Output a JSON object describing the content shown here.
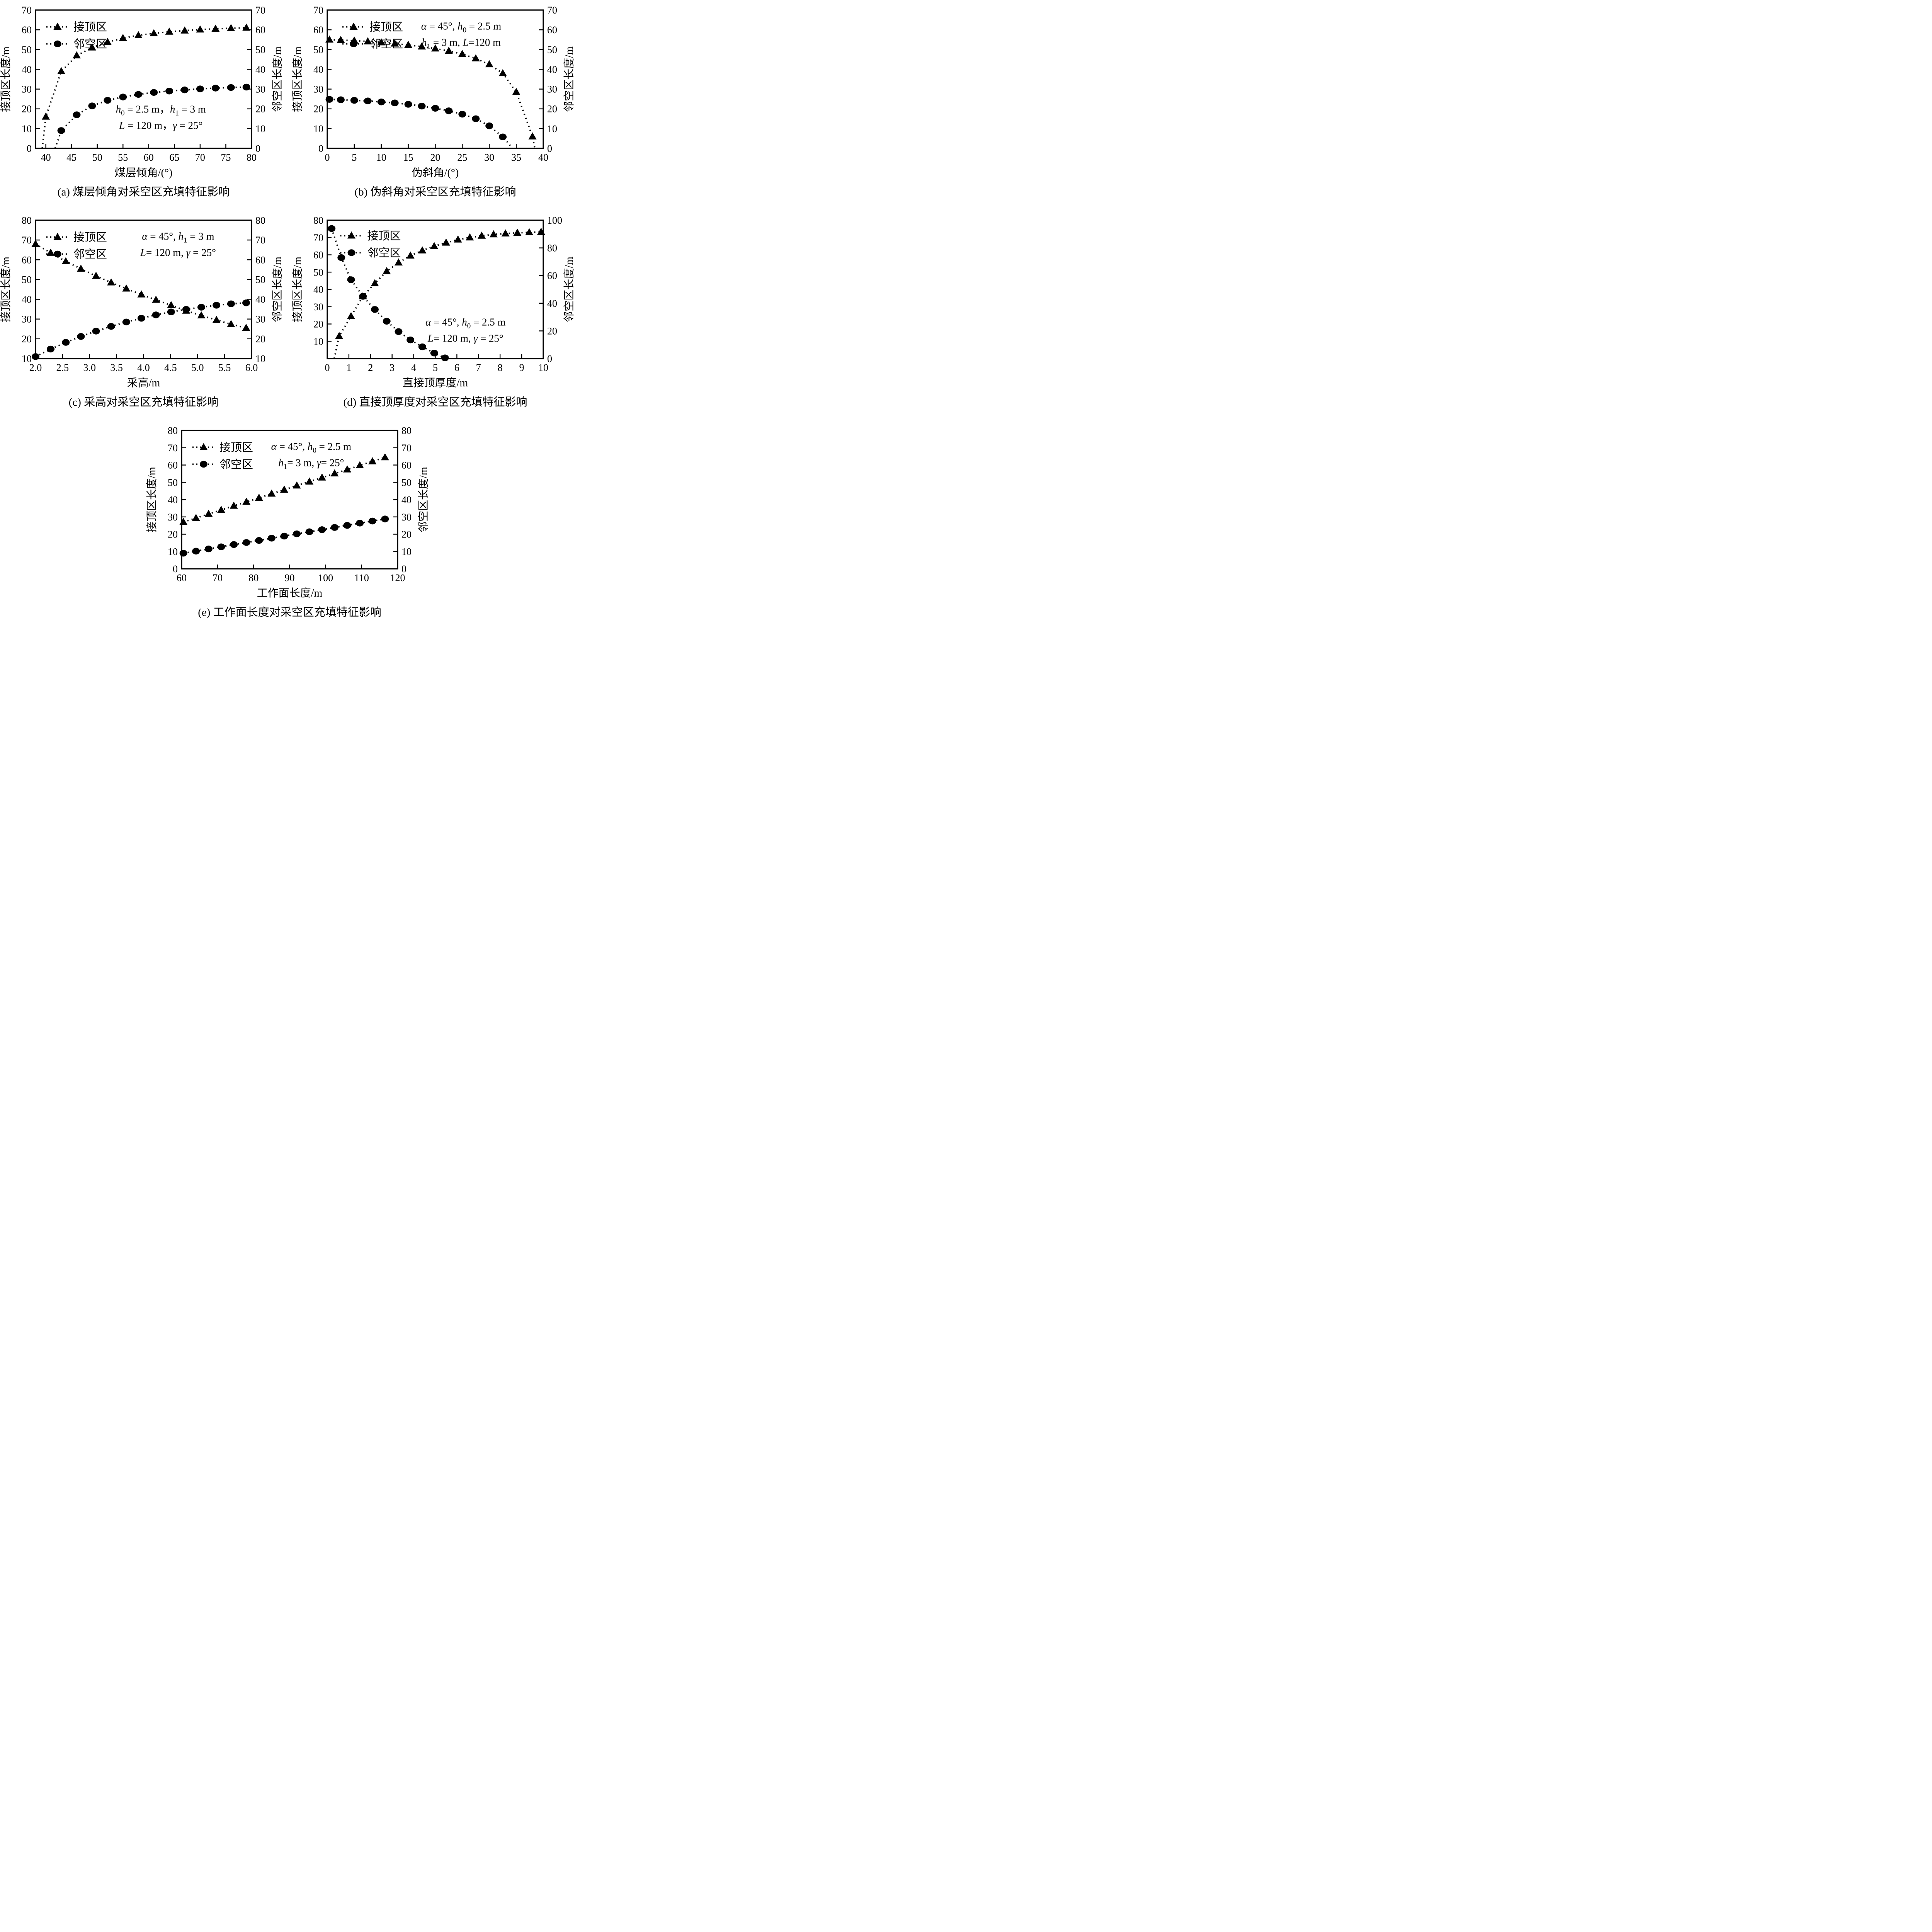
{
  "page": {
    "background": "#ffffff",
    "ink_color": "#000000"
  },
  "legend_labels": {
    "triangle": "接顶区",
    "circle": "邻空区"
  },
  "chart_data": [
    {
      "id": "a",
      "type": "line",
      "caption_label": "(a)",
      "caption_text": "煤层倾角对采空区充填特征影响",
      "x_axis": {
        "label": "煤层倾角/(°)",
        "min": 38,
        "max": 80,
        "ticks": [
          40,
          45,
          50,
          55,
          60,
          65,
          70,
          75,
          80
        ],
        "tick_labels": [
          "40",
          "45",
          "50",
          "55",
          "60",
          "65",
          "70",
          "75",
          "80"
        ]
      },
      "left_axis": {
        "label": "接顶区长度/m",
        "min": 0,
        "max": 70,
        "ticks": [
          0,
          10,
          20,
          30,
          40,
          50,
          60,
          70
        ],
        "tick_labels": [
          "0",
          "10",
          "20",
          "30",
          "40",
          "50",
          "60",
          "70"
        ]
      },
      "right_axis": {
        "label": "邻空区长度/m",
        "min": 0,
        "max": 70,
        "ticks": [
          0,
          10,
          20,
          30,
          40,
          50,
          60,
          70
        ],
        "tick_labels": [
          "0",
          "10",
          "20",
          "30",
          "40",
          "50",
          "60",
          "70"
        ]
      },
      "legend": {
        "x": 0.05,
        "y": 0.06,
        "items": [
          {
            "label": "接顶区",
            "marker": "triangle"
          },
          {
            "label": "邻空区",
            "marker": "circle"
          }
        ]
      },
      "annotation": {
        "x": 0.58,
        "y": 0.68,
        "lines": [
          "h0 = 2.5 m，h1 = 3 m",
          "L = 120 m，γ = 25°"
        ]
      },
      "series": [
        {
          "name": "接顶区",
          "marker": "triangle",
          "axis": "left",
          "line_start": [
            39.3,
            0
          ],
          "x": [
            40,
            43,
            46,
            49,
            52,
            55,
            58,
            61,
            64,
            67,
            70,
            73,
            76,
            79
          ],
          "y": [
            16,
            39,
            47,
            51,
            53.8,
            55.8,
            57.2,
            58.2,
            59,
            59.6,
            60.1,
            60.5,
            60.8,
            61
          ]
        },
        {
          "name": "邻空区",
          "marker": "circle",
          "axis": "right",
          "line_start": [
            41.8,
            0
          ],
          "x": [
            43,
            46,
            49,
            52,
            55,
            58,
            61,
            64,
            67,
            70,
            73,
            76,
            79
          ],
          "y": [
            9,
            17,
            21.5,
            24.3,
            26,
            27.3,
            28.3,
            29,
            29.6,
            30.1,
            30.5,
            30.8,
            31
          ]
        }
      ]
    },
    {
      "id": "b",
      "type": "line",
      "caption_label": "(b)",
      "caption_text": "伪斜角对采空区充填特征影响",
      "x_axis": {
        "label": "伪斜角/(°)",
        "min": 0,
        "max": 40,
        "ticks": [
          0,
          5,
          10,
          15,
          20,
          25,
          30,
          35,
          40
        ],
        "tick_labels": [
          "0",
          "5",
          "10",
          "15",
          "20",
          "25",
          "30",
          "35",
          "40"
        ]
      },
      "left_axis": {
        "label": "接顶区长度/m",
        "min": 0,
        "max": 70,
        "ticks": [
          0,
          10,
          20,
          30,
          40,
          50,
          60,
          70
        ],
        "tick_labels": [
          "0",
          "10",
          "20",
          "30",
          "40",
          "50",
          "60",
          "70"
        ]
      },
      "right_axis": {
        "label": "邻空区长度/m",
        "min": 0,
        "max": 70,
        "ticks": [
          0,
          10,
          20,
          30,
          40,
          50,
          60,
          70
        ],
        "tick_labels": [
          "0",
          "10",
          "20",
          "30",
          "40",
          "50",
          "60",
          "70"
        ]
      },
      "legend": {
        "x": 0.07,
        "y": 0.06,
        "items": [
          {
            "label": "接顶区",
            "marker": "triangle"
          },
          {
            "label": "邻空区",
            "marker": "circle"
          }
        ]
      },
      "annotation": {
        "x": 0.62,
        "y": 0.08,
        "lines": [
          "α = 45°, h0 = 2.5 m",
          "h1 = 3 m, L=120 m"
        ]
      },
      "series": [
        {
          "name": "接顶区",
          "marker": "triangle",
          "axis": "left",
          "line_end": [
            38.45,
            0
          ],
          "x": [
            0.4,
            2.5,
            5,
            7.5,
            10,
            12.5,
            15,
            17.5,
            20,
            22.5,
            25,
            27.5,
            30,
            32.5,
            35,
            38
          ],
          "y": [
            55,
            54.8,
            54.5,
            54.1,
            53.6,
            53,
            52.3,
            51.5,
            50.5,
            49.3,
            47.7,
            45.5,
            42.5,
            38,
            28.5,
            6
          ]
        },
        {
          "name": "邻空区",
          "marker": "circle",
          "axis": "right",
          "line_end": [
            34.35,
            0
          ],
          "x": [
            0.4,
            2.5,
            5,
            7.5,
            10,
            12.5,
            15,
            17.5,
            20,
            22.5,
            25,
            27.5,
            30,
            32.5
          ],
          "y": [
            24.8,
            24.6,
            24.3,
            24,
            23.5,
            23,
            22.3,
            21.4,
            20.3,
            19,
            17.3,
            15,
            11.4,
            5.8
          ]
        }
      ]
    },
    {
      "id": "c",
      "type": "line",
      "caption_label": "(c)",
      "caption_text": "采高对采空区充填特征影响",
      "x_axis": {
        "label": "采高/m",
        "min": 2.0,
        "max": 6.0,
        "ticks": [
          2.0,
          2.5,
          3.0,
          3.5,
          4.0,
          4.5,
          5.0,
          5.5,
          6.0
        ],
        "tick_labels": [
          "2.0",
          "2.5",
          "3.0",
          "3.5",
          "4.0",
          "4.5",
          "5.0",
          "5.5",
          "6.0"
        ]
      },
      "left_axis": {
        "label": "接顶区长度/m",
        "min": 10,
        "max": 80,
        "ticks": [
          10,
          20,
          30,
          40,
          50,
          60,
          70,
          80
        ],
        "tick_labels": [
          "10",
          "20",
          "30",
          "40",
          "50",
          "60",
          "70",
          "80"
        ]
      },
      "right_axis": {
        "label": "邻空区长度/m",
        "min": 10,
        "max": 80,
        "ticks": [
          10,
          20,
          30,
          40,
          50,
          60,
          70,
          80
        ],
        "tick_labels": [
          "10",
          "20",
          "30",
          "40",
          "50",
          "60",
          "70",
          "80"
        ]
      },
      "legend": {
        "x": 0.05,
        "y": 0.06,
        "items": [
          {
            "label": "接顶区",
            "marker": "triangle"
          },
          {
            "label": "邻空区",
            "marker": "circle"
          }
        ]
      },
      "annotation": {
        "x": 0.66,
        "y": 0.08,
        "lines": [
          "α = 45°, h1 = 3 m",
          "L= 120 m, γ = 25°"
        ]
      },
      "series": [
        {
          "name": "接顶区",
          "marker": "triangle",
          "axis": "left",
          "x": [
            2.0,
            2.28,
            2.56,
            2.84,
            3.12,
            3.4,
            3.68,
            3.96,
            4.23,
            4.51,
            4.79,
            5.07,
            5.35,
            5.62,
            5.9
          ],
          "y": [
            68,
            63.5,
            59.2,
            55.4,
            51.8,
            48.5,
            45.4,
            42.4,
            39.7,
            37,
            34.2,
            31.8,
            29.5,
            27.4,
            25.5
          ]
        },
        {
          "name": "邻空区",
          "marker": "circle",
          "axis": "right",
          "x": [
            2.0,
            2.28,
            2.56,
            2.84,
            3.12,
            3.4,
            3.68,
            3.96,
            4.23,
            4.51,
            4.79,
            5.07,
            5.35,
            5.62,
            5.9
          ],
          "y": [
            11,
            14.8,
            18.2,
            21.2,
            23.9,
            26.3,
            28.5,
            30.4,
            32.1,
            33.6,
            34.9,
            36,
            37,
            37.7,
            38.2
          ]
        }
      ]
    },
    {
      "id": "d",
      "type": "line",
      "caption_label": "(d)",
      "caption_text": "直接顶厚度对采空区充填特征影响",
      "x_axis": {
        "label": "直接顶厚度/m",
        "min": 0,
        "max": 10,
        "ticks": [
          0,
          1,
          2,
          3,
          4,
          5,
          6,
          7,
          8,
          9,
          10
        ],
        "tick_labels": [
          "0",
          "1",
          "2",
          "3",
          "4",
          "5",
          "6",
          "7",
          "8",
          "9",
          "10"
        ]
      },
      "left_axis": {
        "label": "接顶区长度/m",
        "min": 0,
        "max": 80,
        "ticks": [
          10,
          20,
          30,
          40,
          50,
          60,
          70,
          80
        ],
        "tick_labels": [
          "10",
          "20",
          "30",
          "40",
          "50",
          "60",
          "70",
          "80"
        ]
      },
      "right_axis": {
        "label": "邻空区长度/m",
        "min": 0,
        "max": 100,
        "ticks": [
          0,
          20,
          40,
          60,
          80,
          100
        ],
        "tick_labels": [
          "0",
          "20",
          "40",
          "60",
          "80",
          "100"
        ]
      },
      "legend": {
        "x": 0.06,
        "y": 0.05,
        "items": [
          {
            "label": "接顶区",
            "marker": "triangle"
          },
          {
            "label": "邻空区",
            "marker": "circle"
          }
        ]
      },
      "annotation": {
        "x": 0.64,
        "y": 0.7,
        "lines": [
          "α = 45°,  h0 = 2.5 m",
          "L= 120 m, γ = 25°"
        ]
      },
      "series": [
        {
          "name": "接顶区",
          "marker": "triangle",
          "axis": "left",
          "line_start": [
            0.32,
            0
          ],
          "x": [
            0.55,
            1.1,
            1.65,
            2.2,
            2.75,
            3.3,
            3.85,
            4.4,
            4.95,
            5.5,
            6.05,
            6.6,
            7.15,
            7.7,
            8.25,
            8.8,
            9.35,
            9.9
          ],
          "y": [
            13,
            24.5,
            36,
            43.5,
            50.5,
            55.5,
            59.5,
            62.5,
            65,
            67,
            68.8,
            70,
            71,
            71.8,
            72.3,
            72.7,
            73,
            73.2
          ]
        },
        {
          "name": "邻空区",
          "marker": "circle",
          "axis": "right",
          "line_end": [
            5.62,
            0
          ],
          "x": [
            0.2,
            0.65,
            1.1,
            1.65,
            2.2,
            2.75,
            3.3,
            3.85,
            4.4,
            4.95,
            5.45
          ],
          "y": [
            94,
            73,
            57,
            45,
            35.5,
            27,
            19.5,
            13.5,
            8.5,
            4,
            0.5
          ]
        }
      ]
    },
    {
      "id": "e",
      "type": "line",
      "caption_label": "(e)",
      "caption_text": "工作面长度对采空区充填特征影响",
      "x_axis": {
        "label": "工作面长度/m",
        "min": 60,
        "max": 120,
        "ticks": [
          60,
          70,
          80,
          90,
          100,
          110,
          120
        ],
        "tick_labels": [
          "60",
          "70",
          "80",
          "90",
          "100",
          "110",
          "120"
        ]
      },
      "left_axis": {
        "label": "接顶区长度/m",
        "min": 0,
        "max": 80,
        "ticks": [
          0,
          10,
          20,
          30,
          40,
          50,
          60,
          70,
          80
        ],
        "tick_labels": [
          "0",
          "10",
          "20",
          "30",
          "40",
          "50",
          "60",
          "70",
          "80"
        ]
      },
      "right_axis": {
        "label": "邻空区长度/m",
        "min": 0,
        "max": 80,
        "ticks": [
          0,
          10,
          20,
          30,
          40,
          50,
          60,
          70,
          80
        ],
        "tick_labels": [
          "0",
          "10",
          "20",
          "30",
          "40",
          "50",
          "60",
          "70",
          "80"
        ]
      },
      "legend": {
        "x": 0.05,
        "y": 0.06,
        "items": [
          {
            "label": "接顶区",
            "marker": "triangle"
          },
          {
            "label": "邻空区",
            "marker": "circle"
          }
        ]
      },
      "annotation": {
        "x": 0.6,
        "y": 0.08,
        "lines": [
          "α = 45°,  h0 = 2.5 m",
          "h1= 3 m,  γ= 25°"
        ]
      },
      "series": [
        {
          "name": "接顶区",
          "marker": "triangle",
          "axis": "left",
          "x": [
            60.5,
            64,
            67.5,
            71,
            74.5,
            78,
            81.5,
            85,
            88.5,
            92,
            95.5,
            99,
            102.5,
            106,
            109.5,
            113,
            116.5
          ],
          "y": [
            27,
            29.3,
            31.7,
            34,
            36.4,
            38.7,
            41,
            43.4,
            45.7,
            48.1,
            50.4,
            52.7,
            55.1,
            57.4,
            59.8,
            62.1,
            64.4
          ]
        },
        {
          "name": "邻空区",
          "marker": "circle",
          "axis": "right",
          "x": [
            60.5,
            64,
            67.5,
            71,
            74.5,
            78,
            81.5,
            85,
            88.5,
            92,
            95.5,
            99,
            102.5,
            106,
            109.5,
            113,
            116.5
          ],
          "y": [
            9,
            10.2,
            11.5,
            12.7,
            14,
            15.2,
            16.4,
            17.7,
            18.9,
            20.2,
            21.4,
            22.6,
            23.9,
            25.1,
            26.4,
            27.6,
            28.8
          ]
        }
      ]
    }
  ]
}
